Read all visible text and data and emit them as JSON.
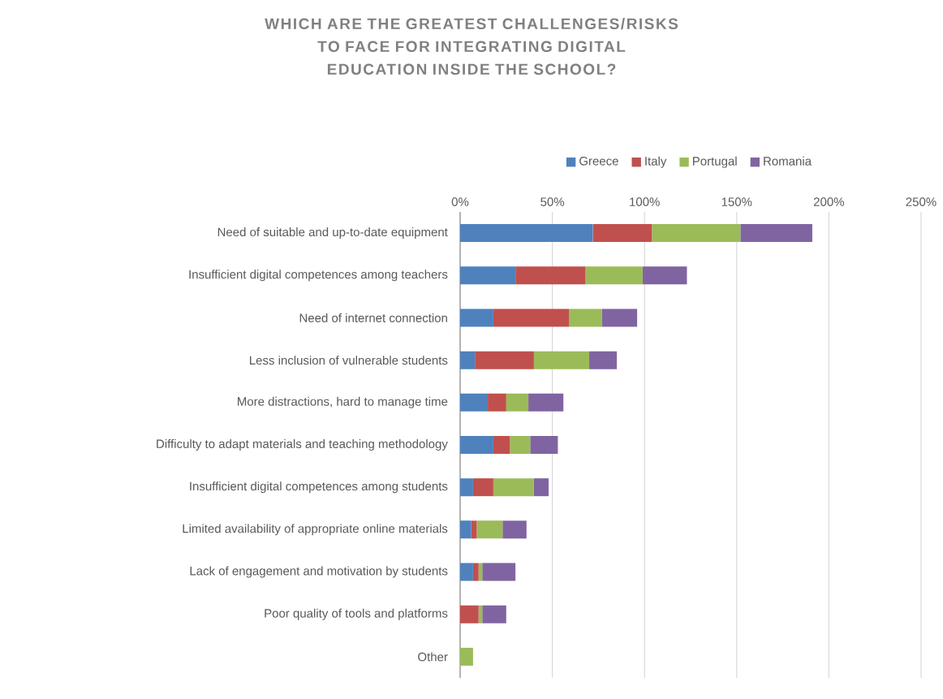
{
  "chart_data": {
    "type": "bar",
    "orientation": "horizontal",
    "stacked": true,
    "title": "WHICH ARE THE GREATEST CHALLENGES/RISKS TO FACE FOR INTEGRATING DIGITAL EDUCATION INSIDE THE SCHOOL?",
    "categories": [
      "Need of suitable and up-to-date equipment",
      "Insufficient digital competences among teachers",
      "Need of internet connection",
      "Less inclusion of vulnerable students",
      "More distractions, hard to manage time",
      "Difficulty to adapt materials and teaching methodology",
      "Insufficient digital competences among students",
      "Limited availability of appropriate online materials",
      "Lack of engagement and motivation by students",
      "Poor quality of tools and platforms",
      "Other"
    ],
    "series": [
      {
        "name": "Greece",
        "color": "#4f81bd",
        "values": [
          72,
          30,
          18,
          8,
          15,
          18,
          7,
          6,
          7,
          0,
          0
        ]
      },
      {
        "name": "Italy",
        "color": "#c0504d",
        "values": [
          32,
          38,
          41,
          32,
          10,
          9,
          11,
          3,
          3,
          10,
          0
        ]
      },
      {
        "name": "Portugal",
        "color": "#9bbb59",
        "values": [
          48,
          31,
          18,
          30,
          12,
          11,
          22,
          14,
          2,
          2,
          7
        ]
      },
      {
        "name": "Romania",
        "color": "#8064a2",
        "values": [
          39,
          24,
          19,
          15,
          19,
          15,
          8,
          13,
          18,
          13,
          0
        ]
      }
    ],
    "xlim": [
      0,
      250
    ],
    "xticks": [
      {
        "value": 0,
        "label": "0%"
      },
      {
        "value": 50,
        "label": "50%"
      },
      {
        "value": 100,
        "label": "100%"
      },
      {
        "value": 150,
        "label": "150%"
      },
      {
        "value": 200,
        "label": "200%"
      },
      {
        "value": 250,
        "label": "250%"
      }
    ],
    "grid": "x",
    "legend": "top"
  }
}
